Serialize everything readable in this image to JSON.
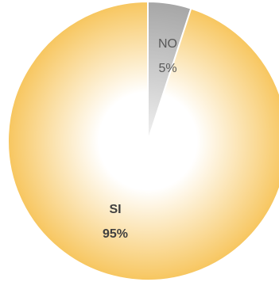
{
  "chart_data": {
    "type": "pie",
    "title": "",
    "slices": [
      {
        "label": "NO",
        "value": 5,
        "percent_label": "5%",
        "color": "#a6a6a6",
        "color_light": "#f2f2f2"
      },
      {
        "label": "SI",
        "value": 95,
        "percent_label": "95%",
        "color": "#f7c65f",
        "color_light": "#ffffff"
      }
    ],
    "legend": "none"
  }
}
